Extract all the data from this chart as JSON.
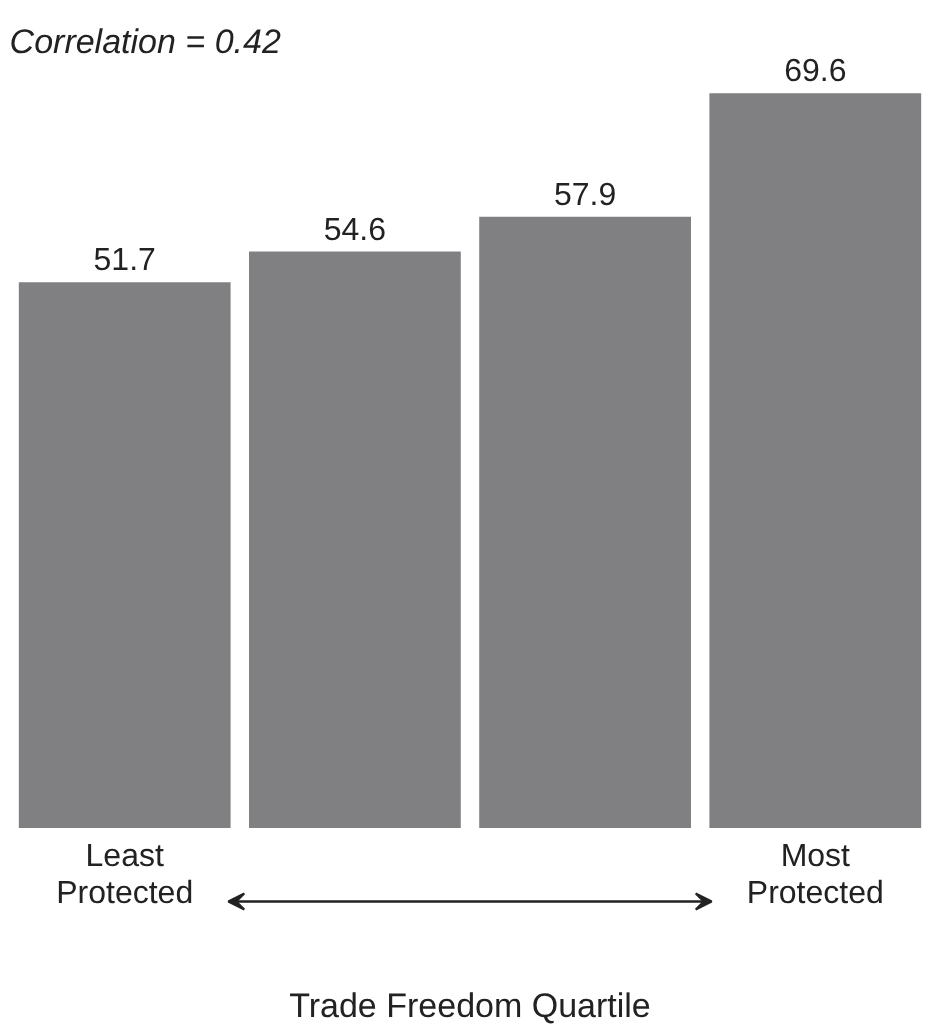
{
  "chart_data": {
    "type": "bar",
    "categories": [
      "Least\nProtected",
      null,
      null,
      "Most\nProtected"
    ],
    "values": [
      51.7,
      54.6,
      57.9,
      69.6
    ],
    "color": "#808083",
    "data_labels": true,
    "xlabel": "Trade Freedom Quartile",
    "annotations": [
      "Correlation = 0.42"
    ]
  }
}
